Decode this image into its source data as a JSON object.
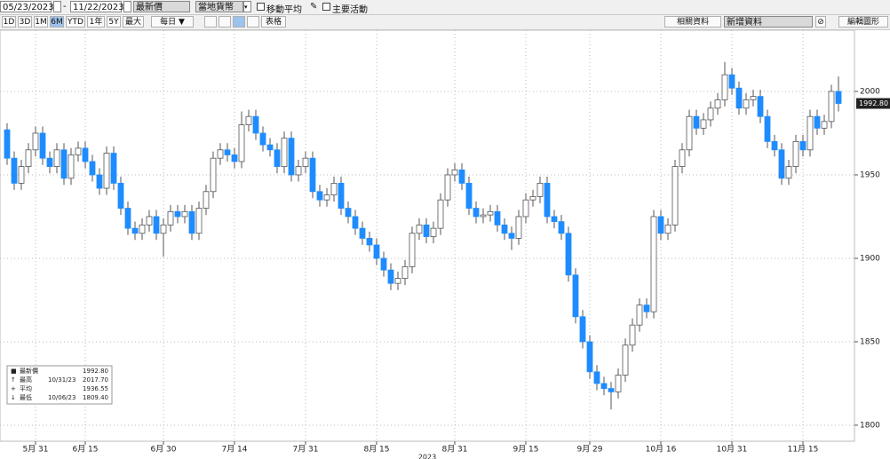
{
  "toolbar": {
    "start_date": "05/23/2023",
    "end_date": "11/22/2023",
    "field": "最新價",
    "currency": "當地貨幣",
    "moving_average": "移動平均",
    "key_events": "主要活動",
    "ranges": [
      "1D",
      "3D",
      "1M",
      "6M",
      "YTD",
      "1年",
      "5Y",
      "最大"
    ],
    "frequency": "每日 ▼",
    "table": "表格",
    "related": "相關資料",
    "add_data": "新增資料",
    "edit_chart": "編輯圖形"
  },
  "chart_data": {
    "type": "candlestick",
    "open": [
      1977,
      1960,
      1945,
      1955,
      1965,
      1975,
      1960,
      1955,
      1965,
      1948,
      1962,
      1966,
      1958,
      1950,
      1942,
      1963,
      1945,
      1930,
      1918,
      1915,
      1920,
      1925,
      1915,
      1920,
      1928,
      1925,
      1928,
      1915,
      1930,
      1940,
      1960,
      1965,
      1962,
      1958,
      1980,
      1985,
      1975,
      1968,
      1965,
      1955,
      1972,
      1950,
      1955,
      1960,
      1940,
      1935,
      1938,
      1945,
      1930,
      1925,
      1918,
      1912,
      1908,
      1900,
      1893,
      1885,
      1888,
      1895,
      1915,
      1920,
      1913,
      1918,
      1935,
      1950,
      1953,
      1945,
      1930,
      1925,
      1926,
      1928,
      1920,
      1915,
      1912,
      1925,
      1935,
      1937,
      1945,
      1925,
      1922,
      1915,
      1890,
      1865,
      1850,
      1832,
      1825,
      1822,
      1820,
      1830,
      1848,
      1860,
      1872,
      1868,
      1925,
      1915,
      1920,
      1955,
      1965,
      1985,
      1978,
      1983,
      1990,
      1995,
      2010,
      2002,
      1990,
      1995,
      1997,
      1985,
      1970,
      1965,
      1948,
      1955,
      1970,
      1965,
      1985,
      1978,
      1982,
      2000
    ],
    "high": [
      1981,
      1964,
      1959,
      1969,
      1979,
      1979,
      1964,
      1969,
      1969,
      1966,
      1970,
      1970,
      1962,
      1954,
      1967,
      1967,
      1949,
      1934,
      1922,
      1924,
      1929,
      1929,
      1924,
      1932,
      1932,
      1932,
      1932,
      1934,
      1944,
      1964,
      1969,
      1969,
      1966,
      1988,
      1989,
      1989,
      1979,
      1972,
      1969,
      1976,
      1976,
      1959,
      1964,
      1964,
      1944,
      1942,
      1949,
      1949,
      1934,
      1929,
      1922,
      1916,
      1912,
      1904,
      1897,
      1892,
      1899,
      1919,
      1924,
      1924,
      1922,
      1939,
      1954,
      1957,
      1957,
      1949,
      1934,
      1930,
      1932,
      1932,
      1924,
      1919,
      1929,
      1939,
      1941,
      1949,
      1949,
      1929,
      1926,
      1919,
      1894,
      1869,
      1854,
      1836,
      1829,
      1826,
      1834,
      1852,
      1864,
      1876,
      1876,
      1929,
      1929,
      1924,
      1959,
      1969,
      1989,
      1989,
      1987,
      1994,
      1999,
      2017.7,
      2014,
      2006,
      1999,
      2001,
      2001,
      1989,
      1974,
      1969,
      1959,
      1974,
      1974,
      1989,
      1989,
      1986,
      2004,
      2009
    ],
    "low": [
      1956,
      1941,
      1941,
      1951,
      1961,
      1956,
      1951,
      1951,
      1944,
      1944,
      1958,
      1954,
      1946,
      1938,
      1938,
      1941,
      1926,
      1914,
      1911,
      1911,
      1916,
      1911,
      1901,
      1916,
      1921,
      1921,
      1911,
      1911,
      1926,
      1936,
      1956,
      1958,
      1954,
      1954,
      1976,
      1971,
      1964,
      1961,
      1951,
      1951,
      1946,
      1946,
      1951,
      1936,
      1931,
      1931,
      1934,
      1926,
      1921,
      1914,
      1908,
      1904,
      1896,
      1889,
      1881,
      1881,
      1884,
      1891,
      1911,
      1909,
      1909,
      1914,
      1931,
      1946,
      1941,
      1926,
      1921,
      1921,
      1922,
      1916,
      1911,
      1905,
      1908,
      1921,
      1931,
      1933,
      1921,
      1918,
      1911,
      1886,
      1861,
      1846,
      1828,
      1821,
      1818,
      1809.4,
      1816,
      1826,
      1844,
      1856,
      1864,
      1864,
      1911,
      1911,
      1916,
      1951,
      1961,
      1974,
      1974,
      1979,
      1986,
      1991,
      1998,
      1986,
      1986,
      1991,
      1981,
      1966,
      1961,
      1944,
      1944,
      1951,
      1961,
      1961,
      1974,
      1974,
      1978,
      1988
    ],
    "close": [
      1960,
      1945,
      1955,
      1965,
      1975,
      1960,
      1955,
      1965,
      1948,
      1962,
      1966,
      1958,
      1950,
      1942,
      1963,
      1945,
      1930,
      1918,
      1915,
      1920,
      1925,
      1915,
      1920,
      1928,
      1925,
      1928,
      1915,
      1930,
      1940,
      1960,
      1965,
      1962,
      1958,
      1980,
      1985,
      1975,
      1968,
      1965,
      1955,
      1972,
      1950,
      1955,
      1960,
      1940,
      1935,
      1938,
      1945,
      1930,
      1925,
      1918,
      1912,
      1908,
      1900,
      1893,
      1885,
      1888,
      1895,
      1915,
      1920,
      1913,
      1918,
      1935,
      1950,
      1953,
      1945,
      1930,
      1925,
      1926,
      1928,
      1920,
      1915,
      1912,
      1925,
      1935,
      1937,
      1945,
      1925,
      1922,
      1915,
      1890,
      1865,
      1850,
      1832,
      1825,
      1822,
      1820,
      1830,
      1848,
      1860,
      1872,
      1868,
      1925,
      1915,
      1920,
      1955,
      1965,
      1985,
      1978,
      1983,
      1990,
      1995,
      2010,
      2002,
      1990,
      1995,
      1997,
      1985,
      1970,
      1965,
      1948,
      1955,
      1970,
      1965,
      1985,
      1978,
      1982,
      2000,
      1992.8
    ],
    "up_color": "#ffffff",
    "down_color": "#1e8cff",
    "outline_color": "#555555",
    "xlim": [
      -1,
      119.25
    ],
    "xticks": [
      {
        "value": 4,
        "label": "5月 31"
      },
      {
        "value": 11,
        "label": "6月 15"
      },
      {
        "value": 22,
        "label": "6月 30"
      },
      {
        "value": 32,
        "label": "7月 14"
      },
      {
        "value": 42,
        "label": "7月 31"
      },
      {
        "value": 52,
        "label": "8月 15"
      },
      {
        "value": 63,
        "label": "8月 31"
      },
      {
        "value": 73,
        "label": "9月 15"
      },
      {
        "value": 82,
        "label": "9月 29"
      },
      {
        "value": 92,
        "label": "10月 16"
      },
      {
        "value": 102,
        "label": "10月 31"
      },
      {
        "value": 112,
        "label": "11月 15"
      }
    ],
    "xlabel": "2023",
    "ylim": [
      1790.4,
      2036.7
    ],
    "yticks": [
      1800,
      1850,
      1900,
      1950,
      2000
    ],
    "grid": true,
    "last_price": {
      "value": 1992.8,
      "label": "1992.80"
    },
    "stats": [
      {
        "name": "最新價",
        "value": "1992.80"
      },
      {
        "name": "最高",
        "date": "10/31/23",
        "value": "2017.70"
      },
      {
        "name": "平均",
        "value": "1936.55"
      },
      {
        "name": "最低",
        "date": "10/06/23",
        "value": "1809.40"
      }
    ]
  }
}
